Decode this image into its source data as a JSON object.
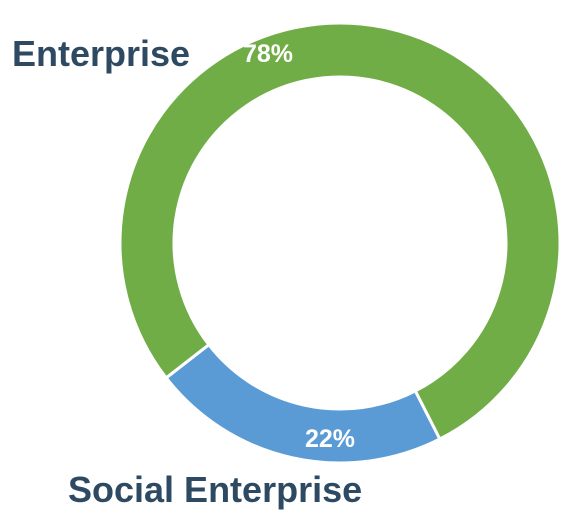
{
  "chart_data": {
    "type": "pie",
    "variant": "donut",
    "categories": [
      "Enterprise",
      "Social Enterprise"
    ],
    "values": [
      78,
      22
    ],
    "value_labels": [
      "78%",
      "22%"
    ],
    "colors": [
      "#70ad47",
      "#5b9bd5"
    ],
    "legend": "none",
    "title": ""
  }
}
